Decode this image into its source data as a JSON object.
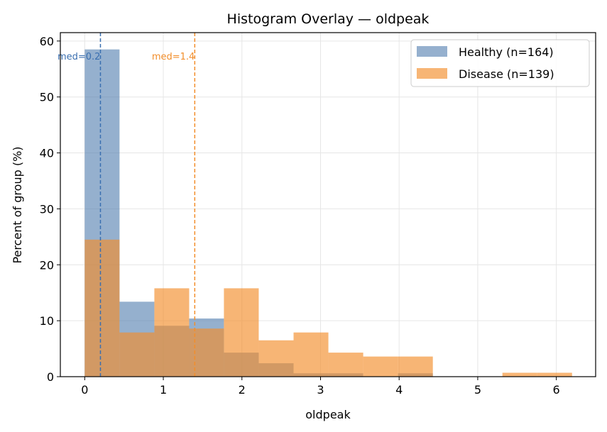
{
  "chart_data": {
    "type": "bar",
    "title": "Histogram Overlay — oldpeak",
    "xlabel": "oldpeak",
    "ylabel": "Percent of group (%)",
    "xlim": [
      -0.31,
      6.5
    ],
    "ylim": [
      0,
      61.5
    ],
    "xticks": [
      0,
      1,
      2,
      3,
      4,
      5,
      6
    ],
    "yticks": [
      0,
      10,
      20,
      30,
      40,
      50,
      60
    ],
    "grid": true,
    "legend_position": "top-right",
    "bin_edges": [
      0,
      0.443,
      0.886,
      1.329,
      1.771,
      2.214,
      2.657,
      3.1,
      3.543,
      3.986,
      4.429,
      4.871,
      5.314,
      5.757,
      6.2
    ],
    "series": [
      {
        "name": "Healthy (n=164)",
        "color": "#4e7cad",
        "values": [
          58.5,
          13.4,
          9.1,
          10.4,
          4.3,
          2.4,
          0.6,
          0.6,
          0,
          0.6,
          0,
          0,
          0,
          0
        ]
      },
      {
        "name": "Disease (n=139)",
        "color": "#f28e2b",
        "values": [
          24.5,
          7.9,
          15.8,
          8.6,
          15.8,
          6.5,
          7.9,
          4.3,
          3.6,
          3.6,
          0,
          0,
          0.7,
          0.7
        ]
      }
    ],
    "medians": [
      {
        "label": "med=0.2",
        "value": 0.2,
        "color": "#3a6fb0"
      },
      {
        "label": "med=1.4",
        "value": 1.4,
        "color": "#f28e2b"
      }
    ]
  }
}
